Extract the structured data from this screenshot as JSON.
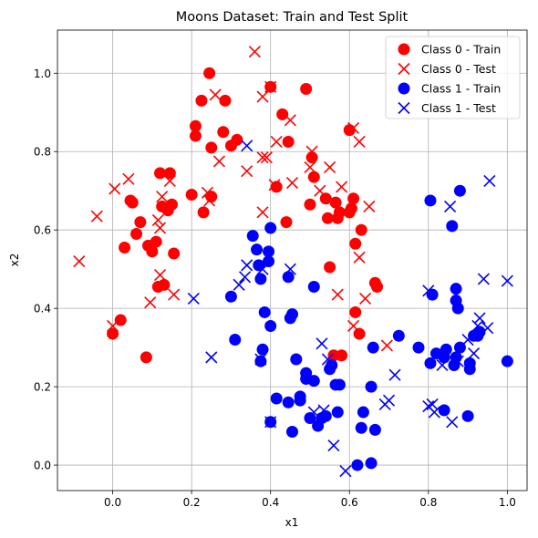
{
  "chart_data": {
    "type": "scatter",
    "title": "Moons Dataset: Train and Test Split",
    "xlabel": "x1",
    "ylabel": "x2",
    "xlim": [
      -0.14,
      1.05
    ],
    "ylim": [
      -0.065,
      1.11
    ],
    "xticks": [
      0.0,
      0.2,
      0.4,
      0.6,
      0.8,
      1.0
    ],
    "yticks": [
      0.0,
      0.2,
      0.4,
      0.6,
      0.8,
      1.0
    ],
    "grid": true,
    "legend_position": "top-right",
    "series": [
      {
        "name": "Class 0 - Train",
        "marker": "circle",
        "color": "#ff0000",
        "points": [
          [
            0.0,
            0.335
          ],
          [
            0.02,
            0.37
          ],
          [
            0.03,
            0.555
          ],
          [
            0.045,
            0.675
          ],
          [
            0.05,
            0.67
          ],
          [
            0.06,
            0.59
          ],
          [
            0.07,
            0.62
          ],
          [
            0.085,
            0.275
          ],
          [
            0.09,
            0.56
          ],
          [
            0.1,
            0.545
          ],
          [
            0.11,
            0.57
          ],
          [
            0.115,
            0.455
          ],
          [
            0.12,
            0.745
          ],
          [
            0.125,
            0.66
          ],
          [
            0.13,
            0.46
          ],
          [
            0.14,
            0.65
          ],
          [
            0.145,
            0.745
          ],
          [
            0.15,
            0.665
          ],
          [
            0.155,
            0.54
          ],
          [
            0.2,
            0.69
          ],
          [
            0.21,
            0.865
          ],
          [
            0.21,
            0.84
          ],
          [
            0.225,
            0.93
          ],
          [
            0.23,
            0.645
          ],
          [
            0.245,
            1.0
          ],
          [
            0.25,
            0.81
          ],
          [
            0.25,
            0.685
          ],
          [
            0.28,
            0.85
          ],
          [
            0.285,
            0.93
          ],
          [
            0.3,
            0.815
          ],
          [
            0.315,
            0.83
          ],
          [
            0.4,
            0.965
          ],
          [
            0.415,
            0.71
          ],
          [
            0.43,
            0.895
          ],
          [
            0.44,
            0.62
          ],
          [
            0.445,
            0.825
          ],
          [
            0.49,
            0.96
          ],
          [
            0.5,
            0.665
          ],
          [
            0.505,
            0.785
          ],
          [
            0.51,
            0.735
          ],
          [
            0.54,
            0.68
          ],
          [
            0.545,
            0.63
          ],
          [
            0.55,
            0.505
          ],
          [
            0.56,
            0.28
          ],
          [
            0.565,
            0.67
          ],
          [
            0.57,
            0.63
          ],
          [
            0.575,
            0.645
          ],
          [
            0.58,
            0.28
          ],
          [
            0.6,
            0.645
          ],
          [
            0.6,
            0.855
          ],
          [
            0.605,
            0.655
          ],
          [
            0.61,
            0.68
          ],
          [
            0.615,
            0.39
          ],
          [
            0.615,
            0.565
          ],
          [
            0.625,
            0.335
          ],
          [
            0.63,
            0.6
          ],
          [
            0.665,
            0.465
          ],
          [
            0.67,
            0.455
          ]
        ]
      },
      {
        "name": "Class 0 - Test",
        "marker": "x",
        "color": "#ff0000",
        "points": [
          [
            -0.085,
            0.52
          ],
          [
            -0.04,
            0.635
          ],
          [
            0.0,
            0.355
          ],
          [
            0.005,
            0.705
          ],
          [
            0.04,
            0.73
          ],
          [
            0.095,
            0.415
          ],
          [
            0.115,
            0.625
          ],
          [
            0.12,
            0.605
          ],
          [
            0.12,
            0.485
          ],
          [
            0.125,
            0.685
          ],
          [
            0.145,
            0.725
          ],
          [
            0.155,
            0.435
          ],
          [
            0.24,
            0.695
          ],
          [
            0.245,
            0.675
          ],
          [
            0.26,
            0.945
          ],
          [
            0.27,
            0.775
          ],
          [
            0.34,
            0.75
          ],
          [
            0.36,
            1.055
          ],
          [
            0.38,
            0.645
          ],
          [
            0.38,
            0.785
          ],
          [
            0.38,
            0.94
          ],
          [
            0.39,
            0.785
          ],
          [
            0.4,
            0.965
          ],
          [
            0.41,
            0.715
          ],
          [
            0.415,
            0.825
          ],
          [
            0.45,
            0.88
          ],
          [
            0.455,
            0.72
          ],
          [
            0.5,
            0.76
          ],
          [
            0.505,
            0.8
          ],
          [
            0.525,
            0.7
          ],
          [
            0.55,
            0.76
          ],
          [
            0.57,
            0.435
          ],
          [
            0.58,
            0.71
          ],
          [
            0.61,
            0.86
          ],
          [
            0.61,
            0.355
          ],
          [
            0.625,
            0.53
          ],
          [
            0.625,
            0.825
          ],
          [
            0.64,
            0.425
          ],
          [
            0.65,
            0.66
          ],
          [
            0.695,
            0.305
          ]
        ]
      },
      {
        "name": "Class 1 - Train",
        "marker": "circle",
        "color": "#0000ff",
        "points": [
          [
            0.3,
            0.43
          ],
          [
            0.31,
            0.32
          ],
          [
            0.355,
            0.585
          ],
          [
            0.365,
            0.55
          ],
          [
            0.37,
            0.51
          ],
          [
            0.375,
            0.475
          ],
          [
            0.375,
            0.265
          ],
          [
            0.38,
            0.295
          ],
          [
            0.385,
            0.39
          ],
          [
            0.395,
            0.52
          ],
          [
            0.395,
            0.545
          ],
          [
            0.4,
            0.605
          ],
          [
            0.4,
            0.355
          ],
          [
            0.4,
            0.11
          ],
          [
            0.415,
            0.17
          ],
          [
            0.445,
            0.16
          ],
          [
            0.445,
            0.48
          ],
          [
            0.45,
            0.375
          ],
          [
            0.455,
            0.385
          ],
          [
            0.455,
            0.085
          ],
          [
            0.465,
            0.27
          ],
          [
            0.475,
            0.175
          ],
          [
            0.475,
            0.165
          ],
          [
            0.49,
            0.235
          ],
          [
            0.49,
            0.22
          ],
          [
            0.5,
            0.12
          ],
          [
            0.51,
            0.215
          ],
          [
            0.51,
            0.455
          ],
          [
            0.52,
            0.1
          ],
          [
            0.53,
            0.12
          ],
          [
            0.54,
            0.125
          ],
          [
            0.55,
            0.245
          ],
          [
            0.555,
            0.255
          ],
          [
            0.565,
            0.205
          ],
          [
            0.57,
            0.135
          ],
          [
            0.575,
            0.205
          ],
          [
            0.62,
            0.0
          ],
          [
            0.63,
            0.095
          ],
          [
            0.635,
            0.135
          ],
          [
            0.655,
            0.2
          ],
          [
            0.655,
            0.005
          ],
          [
            0.66,
            0.3
          ],
          [
            0.665,
            0.09
          ],
          [
            0.725,
            0.33
          ],
          [
            0.775,
            0.3
          ],
          [
            0.805,
            0.675
          ],
          [
            0.805,
            0.26
          ],
          [
            0.81,
            0.435
          ],
          [
            0.82,
            0.285
          ],
          [
            0.84,
            0.14
          ],
          [
            0.84,
            0.275
          ],
          [
            0.845,
            0.295
          ],
          [
            0.86,
            0.61
          ],
          [
            0.865,
            0.255
          ],
          [
            0.87,
            0.45
          ],
          [
            0.87,
            0.42
          ],
          [
            0.87,
            0.275
          ],
          [
            0.875,
            0.4
          ],
          [
            0.88,
            0.7
          ],
          [
            0.88,
            0.3
          ],
          [
            0.9,
            0.125
          ],
          [
            0.905,
            0.245
          ],
          [
            0.905,
            0.26
          ],
          [
            0.915,
            0.33
          ],
          [
            0.925,
            0.33
          ],
          [
            0.93,
            0.34
          ],
          [
            1.0,
            0.265
          ]
        ]
      },
      {
        "name": "Class 1 - Test",
        "marker": "x",
        "color": "#0000ff",
        "points": [
          [
            0.205,
            0.425
          ],
          [
            0.25,
            0.275
          ],
          [
            0.32,
            0.46
          ],
          [
            0.335,
            0.48
          ],
          [
            0.34,
            0.51
          ],
          [
            0.34,
            0.815
          ],
          [
            0.375,
            0.27
          ],
          [
            0.38,
            0.5
          ],
          [
            0.4,
            0.11
          ],
          [
            0.45,
            0.5
          ],
          [
            0.51,
            0.135
          ],
          [
            0.53,
            0.31
          ],
          [
            0.535,
            0.14
          ],
          [
            0.545,
            0.27
          ],
          [
            0.56,
            0.05
          ],
          [
            0.59,
            -0.015
          ],
          [
            0.69,
            0.155
          ],
          [
            0.7,
            0.165
          ],
          [
            0.715,
            0.23
          ],
          [
            0.8,
            0.445
          ],
          [
            0.8,
            0.15
          ],
          [
            0.81,
            0.155
          ],
          [
            0.815,
            0.135
          ],
          [
            0.835,
            0.255
          ],
          [
            0.855,
            0.66
          ],
          [
            0.86,
            0.11
          ],
          [
            0.875,
            0.265
          ],
          [
            0.9,
            0.32
          ],
          [
            0.915,
            0.285
          ],
          [
            0.925,
            0.355
          ],
          [
            0.93,
            0.375
          ],
          [
            0.94,
            0.475
          ],
          [
            0.95,
            0.35
          ],
          [
            0.955,
            0.725
          ],
          [
            1.0,
            0.47
          ]
        ]
      }
    ]
  }
}
